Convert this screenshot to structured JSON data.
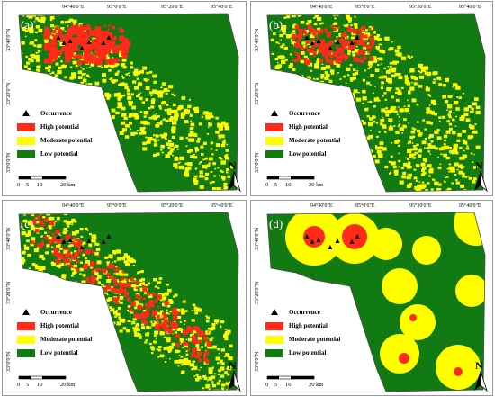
{
  "panels": [
    {
      "label": "(a)",
      "variant": "a"
    },
    {
      "label": "(b)",
      "variant": "b"
    },
    {
      "label": "(c)",
      "variant": "c"
    },
    {
      "label": "(d)",
      "variant": "d"
    }
  ],
  "axes": {
    "longitudes": [
      "94°40'0\"E",
      "95°0'0\"E",
      "95°20'0\"E",
      "95°40'0\"E"
    ],
    "latitudes": [
      "33°40'0\"N",
      "33°20'0\"N",
      "33°0'0\"N"
    ]
  },
  "legend": {
    "occurrence": "Occurrence",
    "high": "High potential",
    "moderate": "Moderate potential",
    "low": "Low potential"
  },
  "scale": {
    "ticks": [
      "0",
      "5",
      "10",
      "20 km"
    ]
  },
  "north_label": "N",
  "colors": {
    "high": "#ff2a1a",
    "moderate": "#ffff00",
    "low": "#127a12",
    "outline": "#4a4a4a"
  }
}
